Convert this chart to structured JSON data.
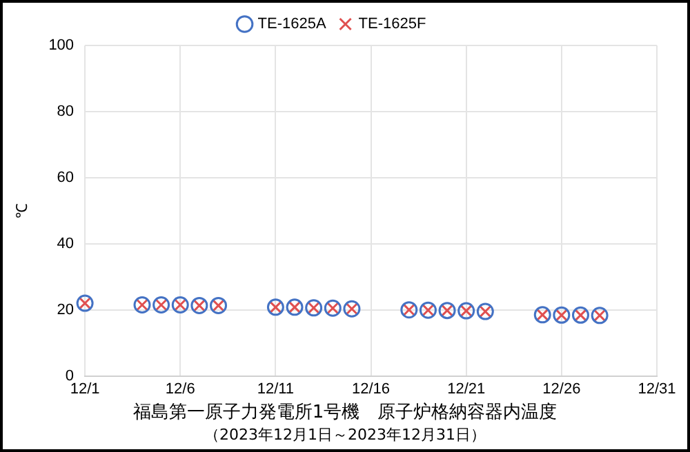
{
  "chart_data": {
    "type": "scatter",
    "title": "福島第一原子力発電所1号機　原子炉格納容器内温度",
    "subtitle": "（2023年12月1日～2023年12月31日）",
    "ylabel": "℃",
    "x": [
      "--12-01",
      "--12-04",
      "--12-05",
      "--12-06",
      "--12-07",
      "--12-08",
      "--12-11",
      "--12-12",
      "--12-13",
      "--12-14",
      "--12-15",
      "--12-18",
      "--12-19",
      "--12-20",
      "--12-21",
      "--12-22",
      "--12-25",
      "--12-26",
      "--12-27",
      "--12-28"
    ],
    "series": [
      {
        "name": "TE-1625A",
        "color": "#4472c4",
        "marker": "circle",
        "values": [
          22,
          21.5,
          21.5,
          21.5,
          21.3,
          21.3,
          20.8,
          20.8,
          20.6,
          20.5,
          20.3,
          20,
          19.9,
          19.8,
          19.7,
          19.5,
          18.5,
          18.4,
          18.4,
          18.3
        ]
      },
      {
        "name": "TE-1625F",
        "color": "#e05050",
        "marker": "cross",
        "values": [
          22,
          21.5,
          21.5,
          21.5,
          21.3,
          21.3,
          20.8,
          20.8,
          20.6,
          20.5,
          20.3,
          20,
          19.9,
          19.8,
          19.7,
          19.5,
          18.5,
          18.4,
          18.4,
          18.3
        ]
      }
    ],
    "xlim": [
      "--12-01",
      "--12-31"
    ],
    "xticks": [
      {
        "value": "--12-01",
        "label": "12/1"
      },
      {
        "value": "--12-06",
        "label": "12/6"
      },
      {
        "value": "--12-11",
        "label": "12/11"
      },
      {
        "value": "--12-16",
        "label": "12/16"
      },
      {
        "value": "--12-21",
        "label": "12/21"
      },
      {
        "value": "--12-26",
        "label": "12/26"
      },
      {
        "value": "--12-31",
        "label": "12/31"
      }
    ],
    "ylim": [
      0,
      100
    ],
    "yticks": [
      0,
      20,
      40,
      60,
      80,
      100
    ],
    "grid": true,
    "legend": "top"
  }
}
